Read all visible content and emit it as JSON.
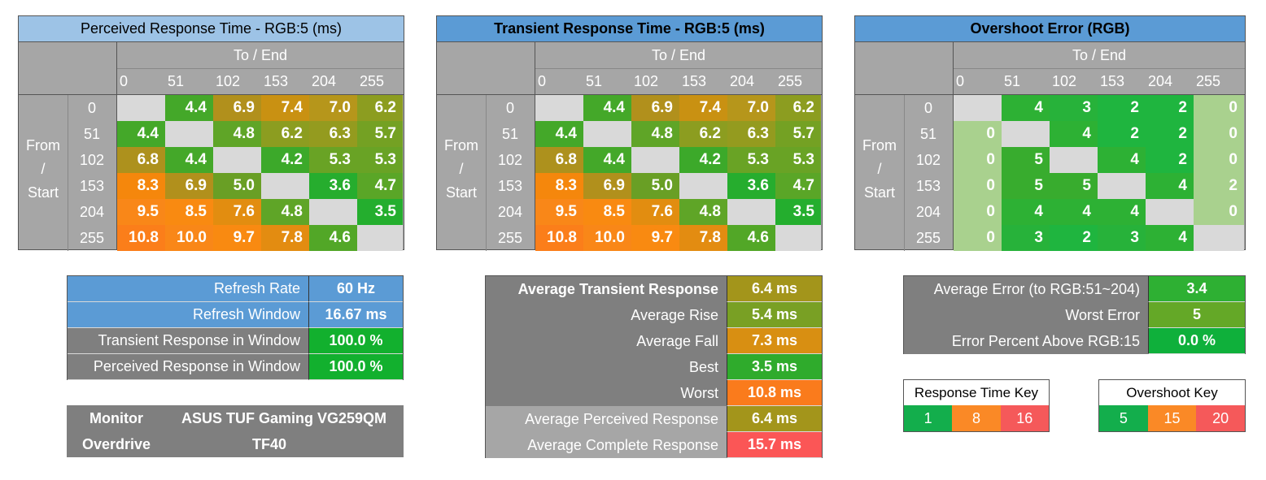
{
  "tables": [
    {
      "title": "Perceived Response Time - RGB:5 (ms)",
      "title_style": "light",
      "to_end_label": "To / End",
      "from_start_lines": [
        "From",
        "/",
        "Start"
      ],
      "levels": [
        "0",
        "51",
        "102",
        "153",
        "204",
        "255"
      ],
      "rows": [
        [
          "",
          "4.4",
          "6.9",
          "7.4",
          "7.0",
          "6.2"
        ],
        [
          "4.4",
          "",
          "4.8",
          "6.2",
          "6.3",
          "5.7"
        ],
        [
          "6.8",
          "4.4",
          "",
          "4.2",
          "5.3",
          "5.3"
        ],
        [
          "8.3",
          "6.9",
          "5.0",
          "",
          "3.6",
          "4.7"
        ],
        [
          "9.5",
          "8.5",
          "7.6",
          "4.8",
          "",
          "3.5"
        ],
        [
          "10.8",
          "10.0",
          "9.7",
          "7.8",
          "4.6",
          ""
        ]
      ],
      "colors": [
        [
          "blank",
          "#44a829",
          "#b1901c",
          "#c99112",
          "#b6961b",
          "#8c9d20"
        ],
        [
          "#44a829",
          "blank",
          "#5fa527",
          "#8c9d20",
          "#949b1f",
          "#74a123"
        ],
        [
          "#ad911d",
          "#44a829",
          "blank",
          "#3ca92a",
          "#69a325",
          "#69a325"
        ],
        [
          "#f5870c",
          "#b1901c",
          "#699f25",
          "blank",
          "#26ad2e",
          "#5aa627"
        ],
        [
          "#f98718",
          "#f98a11",
          "#e28d10",
          "#5fa527",
          "blank",
          "#24ae2e"
        ],
        [
          "#fb7e1a",
          "#f98718",
          "#f98a11",
          "#e38c11",
          "#52a727",
          "blank"
        ]
      ]
    },
    {
      "title": "Transient Response Time - RGB:5 (ms)",
      "title_style": "dark",
      "to_end_label": "To / End",
      "from_start_lines": [
        "From",
        "/",
        "Start"
      ],
      "levels": [
        "0",
        "51",
        "102",
        "153",
        "204",
        "255"
      ],
      "rows": [
        [
          "",
          "4.4",
          "6.9",
          "7.4",
          "7.0",
          "6.2"
        ],
        [
          "4.4",
          "",
          "4.8",
          "6.2",
          "6.3",
          "5.7"
        ],
        [
          "6.8",
          "4.4",
          "",
          "4.2",
          "5.3",
          "5.3"
        ],
        [
          "8.3",
          "6.9",
          "5.0",
          "",
          "3.6",
          "4.7"
        ],
        [
          "9.5",
          "8.5",
          "7.6",
          "4.8",
          "",
          "3.5"
        ],
        [
          "10.8",
          "10.0",
          "9.7",
          "7.8",
          "4.6",
          ""
        ]
      ],
      "colors": [
        [
          "blank",
          "#44a829",
          "#b1901c",
          "#c99112",
          "#b6961b",
          "#8c9d20"
        ],
        [
          "#44a829",
          "blank",
          "#5fa527",
          "#8c9d20",
          "#949b1f",
          "#74a123"
        ],
        [
          "#ad911d",
          "#44a829",
          "blank",
          "#3ca92a",
          "#69a325",
          "#69a325"
        ],
        [
          "#f5870c",
          "#b1901c",
          "#699f25",
          "blank",
          "#26ad2e",
          "#5aa627"
        ],
        [
          "#f98718",
          "#f98a11",
          "#e28d10",
          "#5fa527",
          "blank",
          "#24ae2e"
        ],
        [
          "#fb7e1a",
          "#f98718",
          "#f98a11",
          "#e38c11",
          "#52a727",
          "blank"
        ]
      ]
    },
    {
      "title": "Overshoot Error (RGB)",
      "title_style": "dark",
      "to_end_label": "To / End",
      "from_start_lines": [
        "From",
        "/",
        "Start"
      ],
      "levels": [
        "0",
        "51",
        "102",
        "153",
        "204",
        "255"
      ],
      "rows": [
        [
          "",
          "4",
          "3",
          "2",
          "2",
          "0"
        ],
        [
          "0",
          "",
          "4",
          "2",
          "2",
          "0"
        ],
        [
          "0",
          "5",
          "",
          "4",
          "2",
          "0"
        ],
        [
          "0",
          "5",
          "5",
          "",
          "4",
          "2"
        ],
        [
          "0",
          "4",
          "4",
          "4",
          "",
          "0"
        ],
        [
          "0",
          "3",
          "2",
          "3",
          "4",
          ""
        ]
      ],
      "colors": [
        [
          "blank",
          "#2db134",
          "#27b23a",
          "#1fb53f",
          "#1fb53f",
          "#a9d18e"
        ],
        [
          "#a9d18e",
          "blank",
          "#2db134",
          "#1fb53f",
          "#1fb53f",
          "#a9d18e"
        ],
        [
          "#a9d18e",
          "#38ac2e",
          "blank",
          "#2db134",
          "#1fb53f",
          "#a9d18e"
        ],
        [
          "#a9d18e",
          "#38ac2e",
          "#38ac2e",
          "blank",
          "#2db134",
          "#a9d18e"
        ],
        [
          "#a9d18e",
          "#2db134",
          "#2db134",
          "#2db134",
          "blank",
          "#a9d18e"
        ],
        [
          "#a9d18e",
          "#27b23a",
          "#1fb53f",
          "#27b23a",
          "#2db134",
          "blank"
        ]
      ]
    }
  ],
  "refresh_panel": {
    "rows": [
      {
        "label": "Refresh Rate",
        "value": "60 Hz",
        "label_bg": "#5b9bd5",
        "value_bg": "#5b9bd5"
      },
      {
        "label": "Refresh Window",
        "value": "16.67 ms",
        "label_bg": "#5b9bd5",
        "value_bg": "#5b9bd5"
      },
      {
        "label": "Transient Response in Window",
        "value": "100.0 %",
        "label_bg": "#7f7f7f",
        "value_bg": "#12b02e"
      },
      {
        "label": "Perceived Response in Window",
        "value": "100.0 %",
        "label_bg": "#7f7f7f",
        "value_bg": "#12b02e"
      }
    ]
  },
  "monitor_panel": {
    "monitor_label": "Monitor",
    "monitor_value": "ASUS TUF Gaming VG259QM",
    "overdrive_label": "Overdrive",
    "overdrive_value": "TF40"
  },
  "average_panel": {
    "rows": [
      {
        "label": "Average Transient Response",
        "value": "6.4 ms",
        "bold": true,
        "label_bg": "#7f7f7f",
        "value_bg": "#a3951b"
      },
      {
        "label": "Average Rise",
        "value": "5.4 ms",
        "bold": false,
        "label_bg": "#7f7f7f",
        "value_bg": "#79a024"
      },
      {
        "label": "Average Fall",
        "value": "7.3 ms",
        "bold": false,
        "label_bg": "#7f7f7f",
        "value_bg": "#d88f12"
      },
      {
        "label": "Best",
        "value": "3.5 ms",
        "bold": false,
        "label_bg": "#7f7f7f",
        "value_bg": "#2fab2c"
      },
      {
        "label": "Worst",
        "value": "10.8 ms",
        "bold": false,
        "label_bg": "#7f7f7f",
        "value_bg": "#fa7b1c"
      },
      {
        "label": "Average Perceived Response",
        "value": "6.4 ms",
        "bold": false,
        "label_bg": "#a6a6a6",
        "value_bg": "#a3951b"
      },
      {
        "label": "Average Complete Response",
        "value": "15.7 ms",
        "bold": false,
        "label_bg": "#a6a6a6",
        "value_bg": "#fb5656"
      }
    ]
  },
  "error_panel": {
    "rows": [
      {
        "label": "Average Error (to RGB:51~204)",
        "value": "3.4",
        "value_bg": "#2eb033"
      },
      {
        "label": "Worst Error",
        "value": "5",
        "value_bg": "#64a827"
      },
      {
        "label": "Error Percent Above RGB:15",
        "value": "0.0 %",
        "value_bg": "#0fb03b"
      }
    ]
  },
  "response_key": {
    "title": "Response Time Key",
    "cells": [
      {
        "label": "1",
        "color": "#13ae4c"
      },
      {
        "label": "8",
        "color": "#fa8926"
      },
      {
        "label": "16",
        "color": "#f5595a"
      }
    ]
  },
  "overshoot_key": {
    "title": "Overshoot Key",
    "cells": [
      {
        "label": "5",
        "color": "#13ae4c"
      },
      {
        "label": "15",
        "color": "#fa8926"
      },
      {
        "label": "20",
        "color": "#f5595a"
      }
    ]
  }
}
